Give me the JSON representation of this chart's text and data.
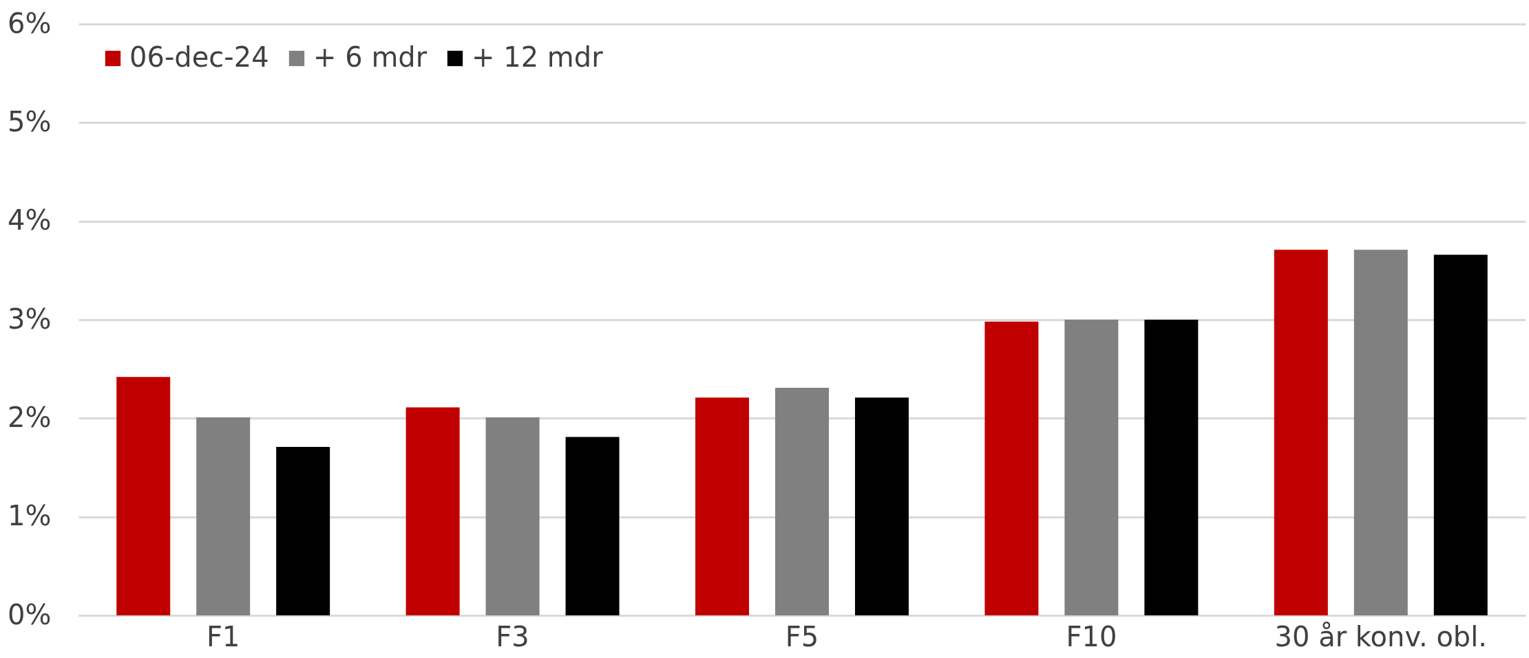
{
  "chart_data": {
    "type": "bar",
    "categories": [
      "F1",
      "F3",
      "F5",
      "F10",
      "30 år konv. obl."
    ],
    "series": [
      {
        "name": "06-dec-24",
        "color": "#c00000",
        "values": [
          2.42,
          2.11,
          2.21,
          2.98,
          3.71
        ]
      },
      {
        "name": "+ 6 mdr",
        "color": "#808080",
        "values": [
          2.01,
          2.01,
          2.31,
          3.0,
          3.71
        ]
      },
      {
        "name": "+ 12 mdr",
        "color": "#000000",
        "values": [
          1.71,
          1.81,
          2.21,
          3.0,
          3.66
        ]
      }
    ],
    "ylim": [
      0,
      6
    ],
    "yticks": [
      {
        "value": 0,
        "label": "0%"
      },
      {
        "value": 1,
        "label": "1%"
      },
      {
        "value": 2,
        "label": "2%"
      },
      {
        "value": 3,
        "label": "3%"
      },
      {
        "value": 4,
        "label": "4%"
      },
      {
        "value": 5,
        "label": "5%"
      },
      {
        "value": 6,
        "label": "6%"
      }
    ],
    "grid": "y",
    "legend": "top left"
  }
}
